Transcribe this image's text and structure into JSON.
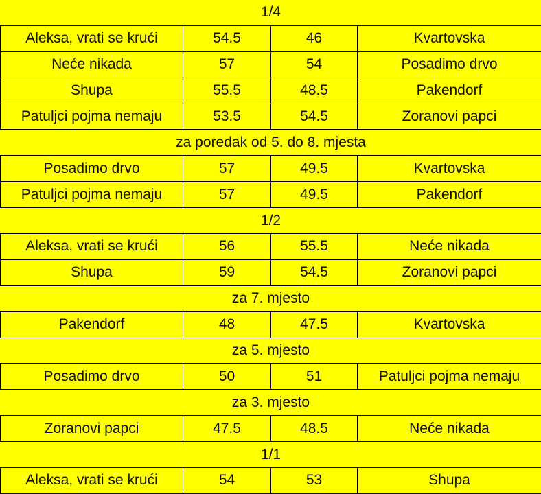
{
  "background_color": "#ffff00",
  "sections": [
    {
      "title": "1/4",
      "matches": [
        [
          "Aleksa, vrati se krući",
          "54.5",
          "46",
          "Kvartovska"
        ],
        [
          "Neće nikada",
          "57",
          "54",
          "Posadimo drvo"
        ],
        [
          "Shupa",
          "55.5",
          "48.5",
          "Pakendorf"
        ],
        [
          "Patuljci pojma nemaju",
          "53.5",
          "54.5",
          "Zoranovi papci"
        ]
      ]
    },
    {
      "title": "za poredak od 5. do 8. mjesta",
      "matches": [
        [
          "Posadimo drvo",
          "57",
          "49.5",
          "Kvartovska"
        ],
        [
          "Patuljci pojma nemaju",
          "57",
          "49.5",
          "Pakendorf"
        ]
      ]
    },
    {
      "title": "1/2",
      "matches": [
        [
          "Aleksa, vrati se krući",
          "56",
          "55.5",
          "Neće nikada"
        ],
        [
          "Shupa",
          "59",
          "54.5",
          "Zoranovi papci"
        ]
      ]
    },
    {
      "title": "za 7. mjesto",
      "matches": [
        [
          "Pakendorf",
          "48",
          "47.5",
          "Kvartovska"
        ]
      ]
    },
    {
      "title": "za 5. mjesto",
      "matches": [
        [
          "Posadimo drvo",
          "50",
          "51",
          "Patuljci pojma nemaju"
        ]
      ]
    },
    {
      "title": "za 3. mjesto",
      "matches": [
        [
          "Zoranovi papci",
          "47.5",
          "48.5",
          "Neće nikada"
        ]
      ]
    },
    {
      "title": "1/1",
      "matches": [
        [
          "Aleksa, vrati se krući",
          "54",
          "53",
          "Shupa"
        ]
      ]
    }
  ]
}
